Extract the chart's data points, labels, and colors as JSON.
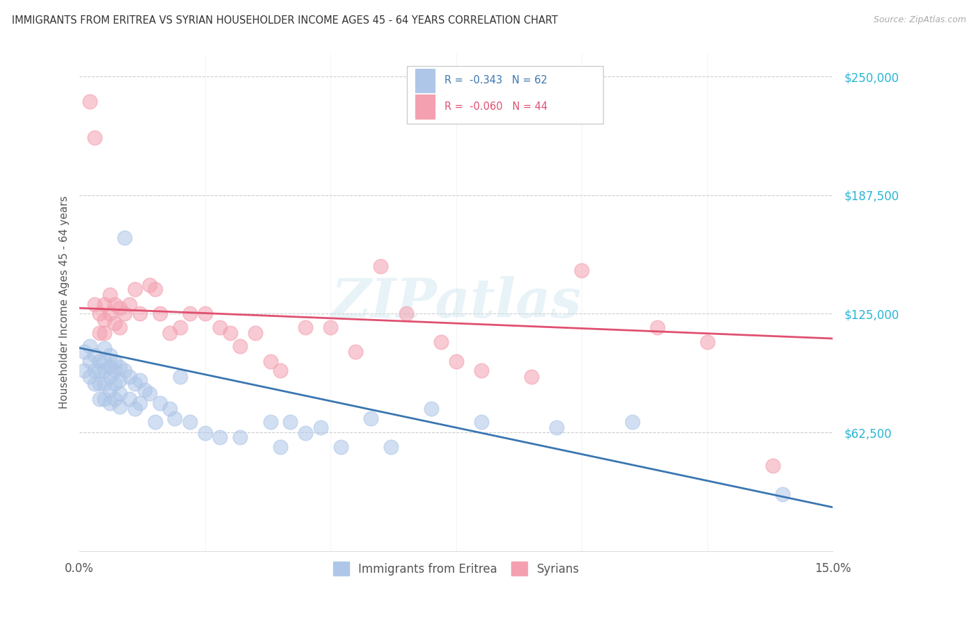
{
  "title": "IMMIGRANTS FROM ERITREA VS SYRIAN HOUSEHOLDER INCOME AGES 45 - 64 YEARS CORRELATION CHART",
  "source": "Source: ZipAtlas.com",
  "ylabel": "Householder Income Ages 45 - 64 years",
  "ytick_labels": [
    "$250,000",
    "$187,500",
    "$125,000",
    "$62,500"
  ],
  "ytick_values": [
    250000,
    187500,
    125000,
    62500
  ],
  "ymin": 0,
  "ymax": 262000,
  "xmin": 0.0,
  "xmax": 0.15,
  "legend_color1": "#aec6e8",
  "legend_color2": "#f4a0b0",
  "scatter_color_eritrea": "#aec6e8",
  "scatter_color_syrian": "#f4a0b0",
  "line_color_eritrea": "#3a76b0",
  "line_color_syrian": "#e05070",
  "watermark": "ZIPatlas",
  "eritrea_intercept": 107000,
  "eritrea_slope": -560000,
  "syrian_intercept": 128000,
  "syrian_slope": -107000,
  "eritrea_x": [
    0.001,
    0.001,
    0.002,
    0.002,
    0.002,
    0.003,
    0.003,
    0.003,
    0.004,
    0.004,
    0.004,
    0.004,
    0.005,
    0.005,
    0.005,
    0.005,
    0.005,
    0.006,
    0.006,
    0.006,
    0.006,
    0.006,
    0.007,
    0.007,
    0.007,
    0.007,
    0.008,
    0.008,
    0.008,
    0.008,
    0.009,
    0.009,
    0.01,
    0.01,
    0.011,
    0.011,
    0.012,
    0.012,
    0.013,
    0.014,
    0.015,
    0.016,
    0.018,
    0.019,
    0.02,
    0.022,
    0.025,
    0.028,
    0.032,
    0.038,
    0.04,
    0.042,
    0.045,
    0.048,
    0.052,
    0.058,
    0.062,
    0.07,
    0.08,
    0.095,
    0.11,
    0.14
  ],
  "eritrea_y": [
    105000,
    95000,
    108000,
    100000,
    92000,
    103000,
    95000,
    88000,
    100000,
    95000,
    88000,
    80000,
    107000,
    100000,
    95000,
    88000,
    80000,
    103000,
    97000,
    92000,
    85000,
    78000,
    100000,
    95000,
    88000,
    80000,
    97000,
    90000,
    83000,
    76000,
    165000,
    95000,
    92000,
    80000,
    88000,
    75000,
    90000,
    78000,
    85000,
    83000,
    68000,
    78000,
    75000,
    70000,
    92000,
    68000,
    62000,
    60000,
    60000,
    68000,
    55000,
    68000,
    62000,
    65000,
    55000,
    70000,
    55000,
    75000,
    68000,
    65000,
    68000,
    30000
  ],
  "syrian_x": [
    0.002,
    0.003,
    0.003,
    0.004,
    0.004,
    0.005,
    0.005,
    0.005,
    0.006,
    0.006,
    0.007,
    0.007,
    0.008,
    0.008,
    0.009,
    0.01,
    0.011,
    0.012,
    0.014,
    0.015,
    0.016,
    0.018,
    0.02,
    0.022,
    0.025,
    0.028,
    0.03,
    0.032,
    0.035,
    0.038,
    0.04,
    0.045,
    0.05,
    0.055,
    0.06,
    0.065,
    0.072,
    0.075,
    0.08,
    0.09,
    0.1,
    0.115,
    0.125,
    0.138
  ],
  "syrian_y": [
    237000,
    218000,
    130000,
    125000,
    115000,
    130000,
    122000,
    115000,
    135000,
    125000,
    130000,
    120000,
    128000,
    118000,
    125000,
    130000,
    138000,
    125000,
    140000,
    138000,
    125000,
    115000,
    118000,
    125000,
    125000,
    118000,
    115000,
    108000,
    115000,
    100000,
    95000,
    118000,
    118000,
    105000,
    150000,
    125000,
    110000,
    100000,
    95000,
    92000,
    148000,
    118000,
    110000,
    45000
  ]
}
